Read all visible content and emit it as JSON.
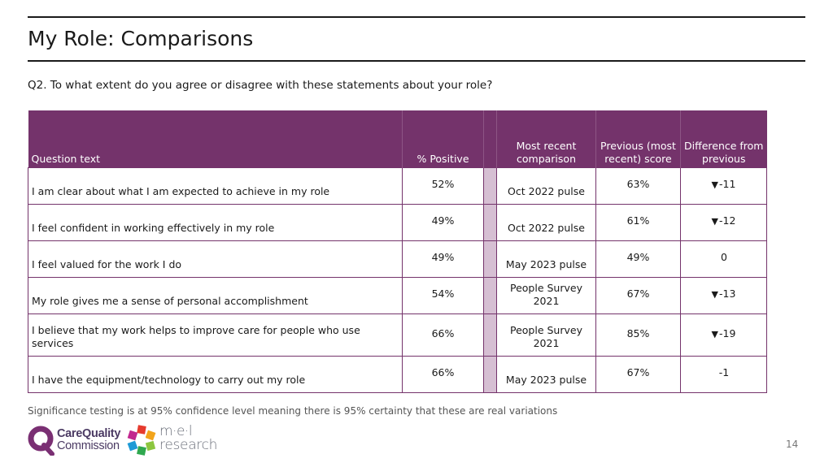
{
  "page": {
    "title": "My Role: Comparisons",
    "question": "Q2. To what extent do you agree or disagree with these statements about your role?",
    "footnote": "Significance testing is at 95% confidence level meaning there is 95% certainty that these are real variations",
    "page_number": "14"
  },
  "logos": {
    "cqc_line1": "CareQuality",
    "cqc_line2": "Commission",
    "mel_line1": "m·e·l",
    "mel_line2": "research"
  },
  "colors": {
    "header_bg": "#74336b",
    "strip": "#d6bfd3",
    "border": "#74336b"
  },
  "table": {
    "headers": {
      "question": "Question text",
      "positive": "% Positive",
      "comparison": "Most recent comparison",
      "previous": "Previous (most recent) score",
      "difference": "Difference from previous"
    },
    "rows": [
      {
        "question": "I am clear about what I am expected to achieve in my role",
        "positive": "52%",
        "comparison": "Oct 2022 pulse",
        "previous": "63%",
        "arrow": "▼",
        "difference": "-11"
      },
      {
        "question": "I feel confident in working effectively in my role",
        "positive": "49%",
        "comparison": "Oct 2022 pulse",
        "previous": "61%",
        "arrow": "▼",
        "difference": "-12"
      },
      {
        "question": "I feel valued for the work I do",
        "positive": "49%",
        "comparison": "May 2023 pulse",
        "previous": "49%",
        "arrow": "",
        "difference": "0"
      },
      {
        "question": "My role gives me a sense of personal accomplishment",
        "positive": "54%",
        "comparison": "People Survey 2021",
        "previous": "67%",
        "arrow": "▼",
        "difference": "-13"
      },
      {
        "question": "I believe that my work helps to improve care for people who use services",
        "positive": "66%",
        "comparison": "People Survey 2021",
        "previous": "85%",
        "arrow": "▼",
        "difference": "-19"
      },
      {
        "question": "I have the equipment/technology to carry out my role",
        "positive": "66%",
        "comparison": "May 2023 pulse",
        "previous": "67%",
        "arrow": "",
        "difference": "-1"
      }
    ]
  }
}
